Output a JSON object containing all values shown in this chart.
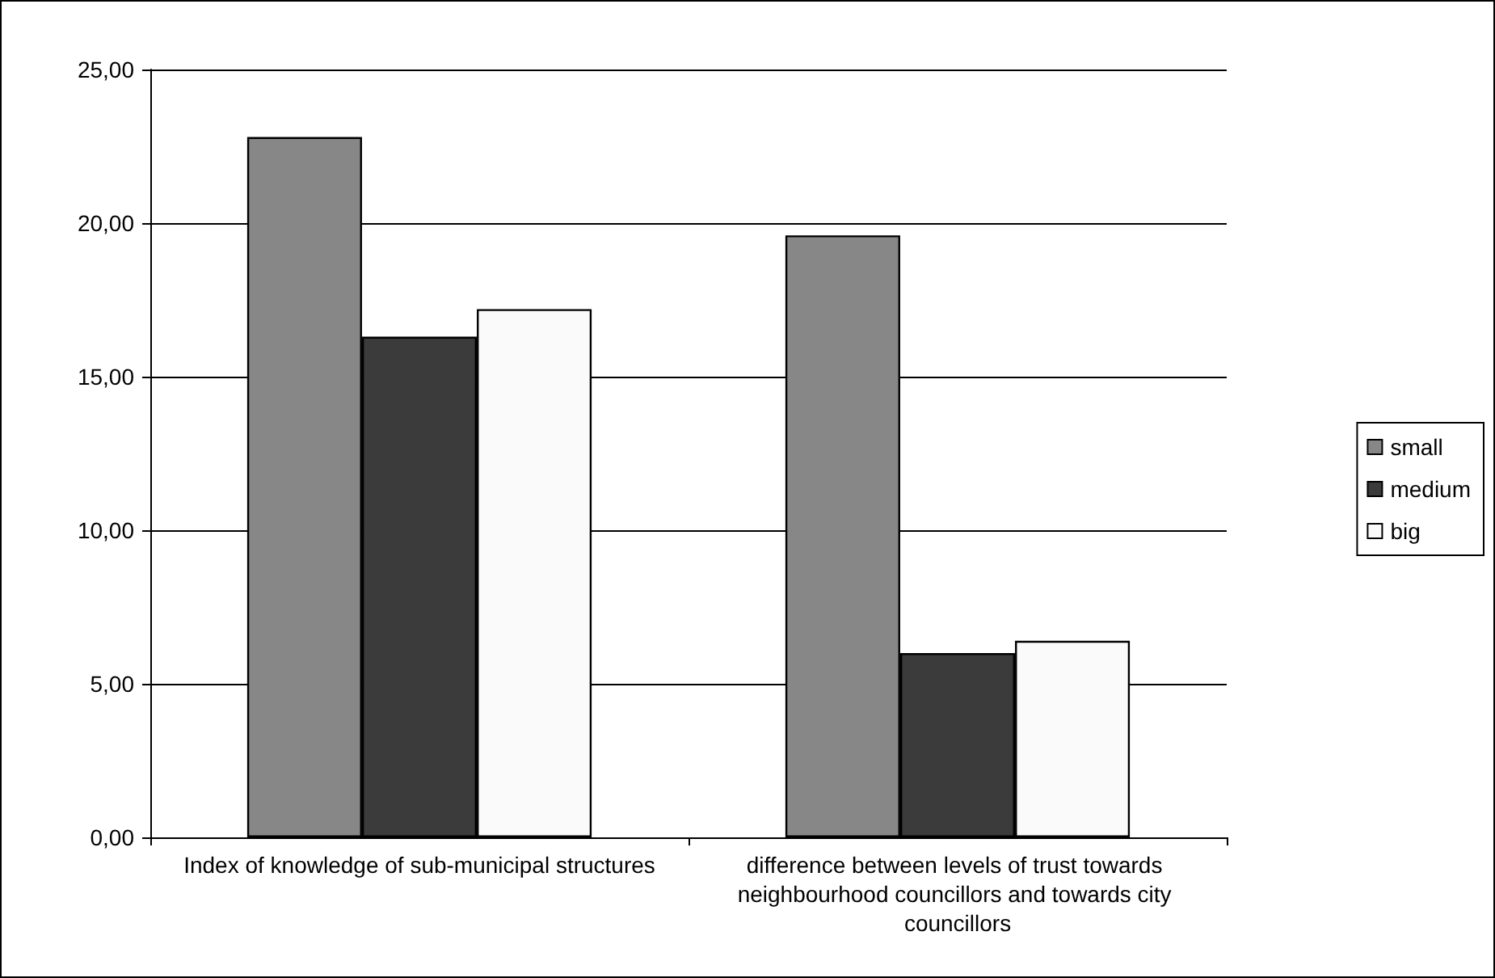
{
  "chart_data": {
    "type": "bar",
    "categories": [
      "Index of knowledge of sub-municipal structures",
      "difference between levels of trust towards neighbourhood councillors and towards city councillors"
    ],
    "series": [
      {
        "name": "small",
        "color": "#878787",
        "values": [
          22.8,
          19.6
        ]
      },
      {
        "name": "medium",
        "color": "#3b3b3b",
        "values": [
          16.3,
          6.0
        ]
      },
      {
        "name": "big",
        "color": "#fafafa",
        "values": [
          17.2,
          6.4
        ]
      }
    ],
    "ylim": [
      0,
      25
    ],
    "yticks": [
      {
        "value": 0,
        "label": "0,00"
      },
      {
        "value": 5,
        "label": "5,00"
      },
      {
        "value": 10,
        "label": "10,00"
      },
      {
        "value": 15,
        "label": "15,00"
      },
      {
        "value": 20,
        "label": "20,00"
      },
      {
        "value": 25,
        "label": "25,00"
      }
    ],
    "grid": "y",
    "legend": "right"
  }
}
